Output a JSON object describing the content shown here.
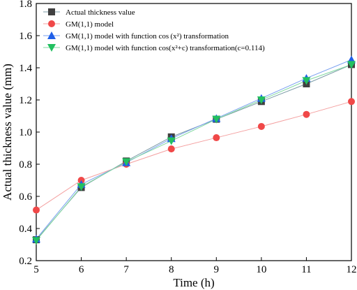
{
  "chart_data": {
    "type": "line",
    "xlabel": "Time (h)",
    "ylabel": "Actual thickness value (mm)",
    "xlim": [
      5,
      12
    ],
    "ylim": [
      0.2,
      1.8
    ],
    "x_ticks": [
      5,
      6,
      7,
      8,
      9,
      10,
      11,
      12
    ],
    "y_ticks": [
      0.2,
      0.4,
      0.6,
      0.8,
      1.0,
      1.2,
      1.4,
      1.6,
      1.8
    ],
    "x_tick_labels": [
      "5",
      "6",
      "7",
      "8",
      "9",
      "10",
      "11",
      "12"
    ],
    "y_tick_labels": [
      "0.2",
      "0.4",
      "0.6",
      "0.8",
      "1.0",
      "1.2",
      "1.4",
      "1.6",
      "1.8"
    ],
    "grid": false,
    "legend_position": "top-left",
    "x": [
      5,
      6,
      7,
      8,
      9,
      10,
      11,
      12
    ],
    "series": [
      {
        "name": "Actual thickness value",
        "marker": "square",
        "color": "#404040",
        "line_color": "#7a9aa6",
        "values": [
          0.33,
          0.655,
          0.82,
          0.97,
          1.08,
          1.19,
          1.3,
          1.42
        ]
      },
      {
        "name": "GM(1,1) model",
        "marker": "circle",
        "color": "#f04848",
        "line_color": "#f4a0a0",
        "values": [
          0.515,
          0.7,
          0.8,
          0.895,
          0.965,
          1.035,
          1.11,
          1.19
        ]
      },
      {
        "name": "GM(1,1) model with function cos (x²)  transformation",
        "marker": "triangle-up",
        "color": "#1f5fe8",
        "line_color": "#7aa0f0",
        "values": [
          0.335,
          0.675,
          0.81,
          0.96,
          1.085,
          1.21,
          1.335,
          1.45
        ]
      },
      {
        "name": "GM(1,1) model with function cos(x²+c) transformation(c=0.114)",
        "marker": "triangle-down",
        "color": "#22c060",
        "line_color": "#80d8a0",
        "values": [
          0.325,
          0.66,
          0.815,
          0.945,
          1.08,
          1.2,
          1.32,
          1.42
        ]
      }
    ]
  }
}
